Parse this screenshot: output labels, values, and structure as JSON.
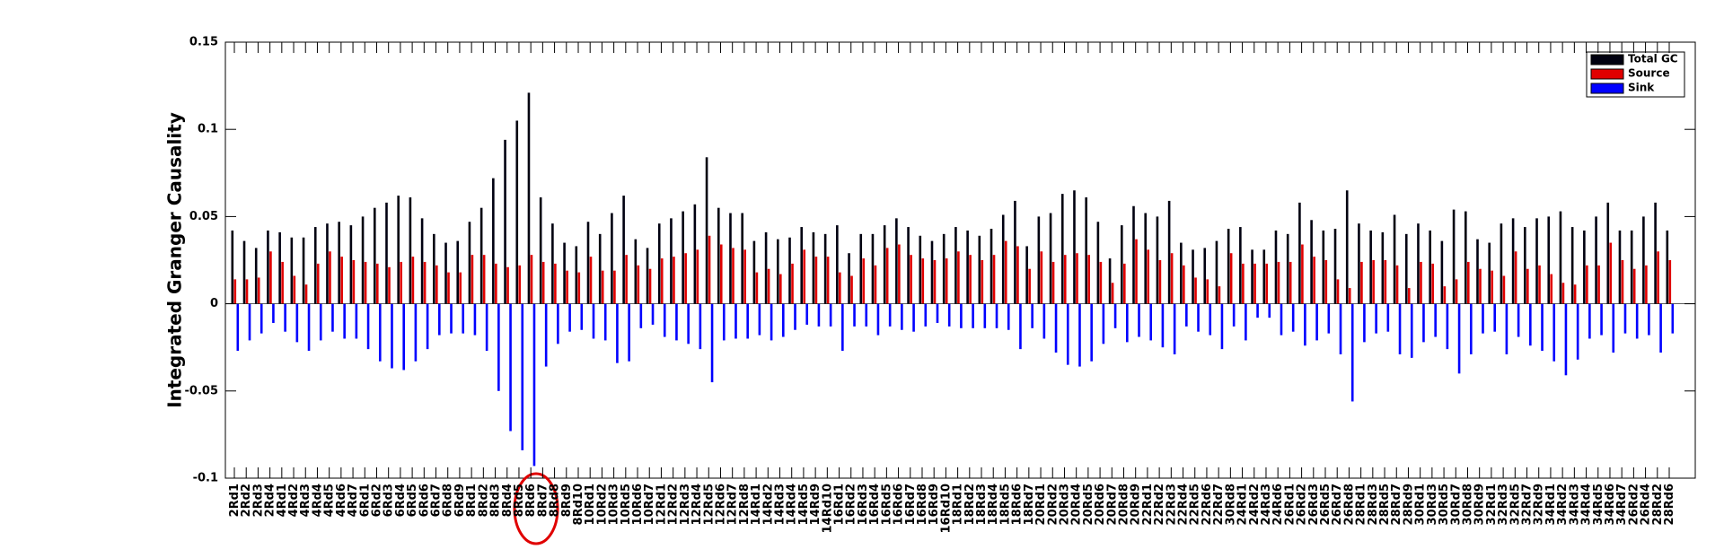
{
  "chart_data": {
    "type": "bar",
    "y_label": "Integrated Granger Causality",
    "ylim": [
      -0.1,
      0.15
    ],
    "yticks": [
      -0.1,
      -0.05,
      0,
      0.05,
      0.1,
      0.15
    ],
    "legend": "upper right",
    "grid": false,
    "categories": [
      "2Rd1",
      "2Rd2",
      "2Rd3",
      "2Rd4",
      "4Rd1",
      "4Rd2",
      "4Rd3",
      "4Rd4",
      "4Rd5",
      "4Rd6",
      "4Rd7",
      "6Rd1",
      "6Rd2",
      "6Rd3",
      "6Rd4",
      "6Rd5",
      "6Rd6",
      "6Rd7",
      "6Rd8",
      "6Rd9",
      "8Rd1",
      "8Rd2",
      "8Rd3",
      "8Rd4",
      "8Rd5",
      "8Rd6",
      "8Rd7",
      "8Rd8",
      "8Rd9",
      "8Rd10",
      "10Rd1",
      "10Rd2",
      "10Rd3",
      "10Rd5",
      "10Rd6",
      "10Rd7",
      "12Rd1",
      "12Rd2",
      "12Rd3",
      "12Rd4",
      "12Rd5",
      "12Rd6",
      "12Rd7",
      "12Rd8",
      "14Rd1",
      "14Rd2",
      "14Rd3",
      "14Rd4",
      "14Rd5",
      "14Rd9",
      "14Rd10",
      "16Rd1",
      "16Rd2",
      "16Rd3",
      "16Rd4",
      "16Rd5",
      "16Rd6",
      "16Rd7",
      "16Rd8",
      "16Rd9",
      "16Rd10",
      "18Rd1",
      "18Rd2",
      "18Rd3",
      "18Rd4",
      "18Rd5",
      "18Rd6",
      "18Rd7",
      "20Rd1",
      "20Rd2",
      "20Rd3",
      "20Rd4",
      "20Rd5",
      "20Rd6",
      "20Rd7",
      "20Rd8",
      "20Rd9",
      "22Rd1",
      "22Rd2",
      "22Rd3",
      "22Rd4",
      "22Rd5",
      "22Rd6",
      "22Rd7",
      "30Rd8",
      "24Rd1",
      "24Rd2",
      "24Rd3",
      "24Rd6",
      "26Rd1",
      "26Rd2",
      "26Rd3",
      "26Rd5",
      "26Rd7",
      "26Rd8",
      "28Rd1",
      "28Rd3",
      "28Rd5",
      "28Rd7",
      "28Rd9",
      "30Rd1",
      "30Rd3",
      "30Rd5",
      "30Rd7",
      "30Rd8",
      "30Rd9",
      "32Rd1",
      "32Rd3",
      "32Rd5",
      "32Rd7",
      "32Rd9",
      "34Rd1",
      "34Rd2",
      "34Rd3",
      "34Rd4",
      "34Rd5",
      "34Rd6",
      "34Rd7",
      "26Rd2",
      "26Rd4",
      "28Rd2",
      "28Rd6"
    ],
    "series": [
      {
        "name": "Total GC",
        "color": "#000010",
        "values": [
          0.042,
          0.036,
          0.032,
          0.042,
          0.041,
          0.038,
          0.038,
          0.044,
          0.046,
          0.047,
          0.045,
          0.05,
          0.055,
          0.058,
          0.062,
          0.061,
          0.049,
          0.04,
          0.035,
          0.036,
          0.047,
          0.055,
          0.072,
          0.094,
          0.105,
          0.121,
          0.061,
          0.046,
          0.035,
          0.033,
          0.047,
          0.04,
          0.052,
          0.062,
          0.037,
          0.032,
          0.046,
          0.049,
          0.053,
          0.057,
          0.084,
          0.055,
          0.052,
          0.052,
          0.036,
          0.041,
          0.037,
          0.038,
          0.044,
          0.041,
          0.04,
          0.045,
          0.029,
          0.04,
          0.04,
          0.045,
          0.049,
          0.044,
          0.039,
          0.036,
          0.04,
          0.044,
          0.042,
          0.039,
          0.043,
          0.051,
          0.059,
          0.033,
          0.05,
          0.052,
          0.063,
          0.065,
          0.061,
          0.047,
          0.026,
          0.045,
          0.056,
          0.052,
          0.05,
          0.059,
          0.035,
          0.031,
          0.032,
          0.036,
          0.043,
          0.044,
          0.031,
          0.031,
          0.042,
          0.04,
          0.058,
          0.048,
          0.042,
          0.043,
          0.065,
          0.046,
          0.042,
          0.041,
          0.051,
          0.04,
          0.046,
          0.042,
          0.036,
          0.054,
          0.053,
          0.037,
          0.035,
          0.046,
          0.049,
          0.044,
          0.049,
          0.05,
          0.053,
          0.044,
          0.042,
          0.05,
          0.058,
          0.042,
          0.042,
          0.05,
          0.058,
          0.042
        ]
      },
      {
        "name": "Source",
        "color": "#e00000",
        "values": [
          0.014,
          0.014,
          0.015,
          0.03,
          0.024,
          0.016,
          0.011,
          0.023,
          0.03,
          0.027,
          0.025,
          0.024,
          0.023,
          0.021,
          0.024,
          0.027,
          0.024,
          0.022,
          0.018,
          0.018,
          0.028,
          0.028,
          0.023,
          0.021,
          0.022,
          0.028,
          0.024,
          0.023,
          0.019,
          0.018,
          0.027,
          0.019,
          0.019,
          0.028,
          0.022,
          0.02,
          0.026,
          0.027,
          0.029,
          0.031,
          0.039,
          0.034,
          0.032,
          0.031,
          0.018,
          0.02,
          0.017,
          0.023,
          0.031,
          0.027,
          0.027,
          0.018,
          0.016,
          0.026,
          0.022,
          0.032,
          0.034,
          0.028,
          0.026,
          0.025,
          0.026,
          0.03,
          0.028,
          0.025,
          0.028,
          0.036,
          0.033,
          0.02,
          0.03,
          0.024,
          0.028,
          0.029,
          0.028,
          0.024,
          0.012,
          0.023,
          0.037,
          0.031,
          0.025,
          0.029,
          0.022,
          0.015,
          0.014,
          0.01,
          0.029,
          0.023,
          0.023,
          0.023,
          0.024,
          0.024,
          0.034,
          0.027,
          0.025,
          0.014,
          0.009,
          0.024,
          0.025,
          0.025,
          0.022,
          0.009,
          0.024,
          0.023,
          0.01,
          0.014,
          0.024,
          0.02,
          0.019,
          0.016,
          0.03,
          0.02,
          0.022,
          0.017,
          0.012,
          0.011,
          0.022,
          0.022,
          0.035,
          0.025,
          0.02,
          0.022,
          0.03,
          0.025
        ]
      },
      {
        "name": "Sink",
        "color": "#0000ff",
        "values": [
          -0.027,
          -0.021,
          -0.017,
          -0.011,
          -0.016,
          -0.022,
          -0.027,
          -0.021,
          -0.016,
          -0.02,
          -0.02,
          -0.026,
          -0.033,
          -0.037,
          -0.038,
          -0.033,
          -0.026,
          -0.018,
          -0.017,
          -0.017,
          -0.018,
          -0.027,
          -0.05,
          -0.073,
          -0.084,
          -0.093,
          -0.036,
          -0.023,
          -0.016,
          -0.015,
          -0.02,
          -0.021,
          -0.034,
          -0.033,
          -0.014,
          -0.012,
          -0.019,
          -0.021,
          -0.023,
          -0.026,
          -0.045,
          -0.021,
          -0.02,
          -0.02,
          -0.018,
          -0.021,
          -0.019,
          -0.015,
          -0.012,
          -0.013,
          -0.013,
          -0.027,
          -0.013,
          -0.013,
          -0.018,
          -0.013,
          -0.015,
          -0.016,
          -0.013,
          -0.011,
          -0.013,
          -0.014,
          -0.014,
          -0.014,
          -0.014,
          -0.015,
          -0.026,
          -0.014,
          -0.02,
          -0.028,
          -0.035,
          -0.036,
          -0.033,
          -0.023,
          -0.014,
          -0.022,
          -0.019,
          -0.021,
          -0.025,
          -0.029,
          -0.013,
          -0.016,
          -0.018,
          -0.026,
          -0.013,
          -0.021,
          -0.008,
          -0.008,
          -0.018,
          -0.016,
          -0.024,
          -0.021,
          -0.017,
          -0.029,
          -0.056,
          -0.022,
          -0.017,
          -0.016,
          -0.029,
          -0.031,
          -0.022,
          -0.019,
          -0.026,
          -0.04,
          -0.029,
          -0.017,
          -0.016,
          -0.029,
          -0.019,
          -0.024,
          -0.027,
          -0.033,
          -0.041,
          -0.032,
          -0.02,
          -0.018,
          -0.028,
          -0.017,
          -0.02,
          -0.018,
          -0.028,
          -0.017
        ]
      }
    ]
  }
}
